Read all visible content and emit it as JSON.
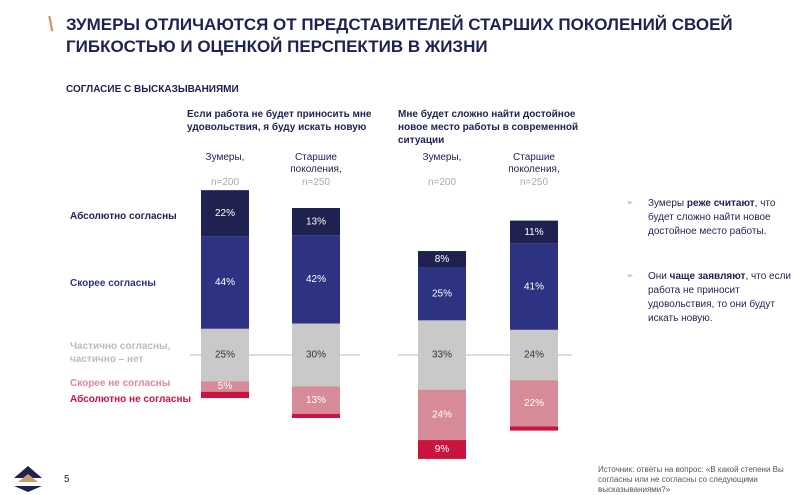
{
  "chart_data": {
    "type": "diverging_stacked_bar",
    "title": "ЗУМЕРЫ ОТЛИЧАЮТСЯ ОТ ПРЕДСТАВИТЕЛЕЙ СТАРШИХ ПОКОЛЕНИЙ СВОЕЙ ГИБКОСТЬЮ И ОЦЕНКОЙ ПЕРСПЕКТИВ В ЖИЗНИ",
    "subtitle": "СОГЛАСИЕ С ВЫСКАЗЫВАНИЯМИ",
    "groups": [
      "Если работа не будет приносить мне удовольствия, я буду искать новую",
      "Мне будет сложно найти достойное новое место работы в современной ситуации"
    ],
    "categories": [
      "Зумеры,",
      "Старшие поколения,",
      "Зумеры,",
      "Старшие поколения,"
    ],
    "sample_sizes": [
      "n=200",
      "n=250",
      "n=200",
      "n=250"
    ],
    "series": [
      {
        "name": "Абсолютно согласны",
        "color": "#1f2150",
        "values": [
          22,
          13,
          8,
          11
        ],
        "value_labels": [
          "22%",
          "13%",
          "8%",
          "11%"
        ]
      },
      {
        "name": "Скорее согласны",
        "color": "#2e3282",
        "values": [
          44,
          42,
          25,
          41
        ],
        "value_labels": [
          "44%",
          "42%",
          "25%",
          "41%"
        ]
      },
      {
        "name": "Частично согласны,\nчастично – нет",
        "color": "#c9c9c9",
        "values": [
          25,
          30,
          33,
          24
        ],
        "value_labels": [
          "25%",
          "30%",
          "33%",
          "24%"
        ]
      },
      {
        "name": "Скорее не согласны",
        "color": "#d78b98",
        "values": [
          5,
          13,
          24,
          22
        ],
        "value_labels": [
          "5%",
          "13%",
          "24%",
          "22%"
        ]
      },
      {
        "name": "Абсолютно не согласны",
        "color": "#c8143f",
        "values": [
          3,
          2,
          9,
          2
        ],
        "value_labels": [
          null,
          null,
          "9%",
          null
        ]
      }
    ],
    "notes": [
      [
        "Зумеры ",
        "реже считают",
        ", что будет сложно найти новое достойное место работы."
      ],
      [
        "Они ",
        "чаще заявляют",
        ", что если работа не приносит удовольствия, то они будут искать новую."
      ]
    ],
    "page_number": "5",
    "source": "Источник: ответы на вопрос: «В какой степени Вы согласны или не согласны со следующими высказываниями?»"
  }
}
